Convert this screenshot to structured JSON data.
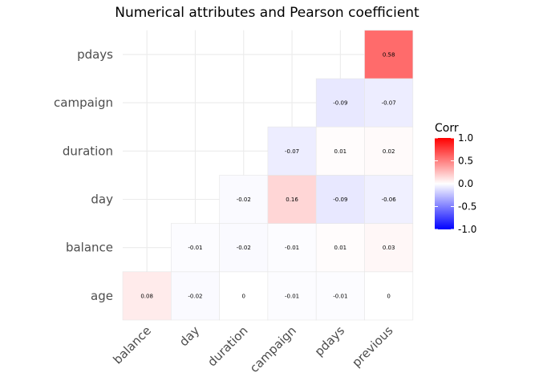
{
  "chart_data": {
    "type": "heatmap",
    "title": "Numerical attributes and Pearson coefficient",
    "x_categories": [
      "balance",
      "day",
      "duration",
      "campaign",
      "pdays",
      "previous"
    ],
    "y_categories": [
      "age",
      "balance",
      "day",
      "duration",
      "campaign",
      "pdays"
    ],
    "cells": [
      {
        "x": "balance",
        "y": "age",
        "value": 0.08,
        "label": "0.08"
      },
      {
        "x": "day",
        "y": "age",
        "value": -0.02,
        "label": "-0.02"
      },
      {
        "x": "duration",
        "y": "age",
        "value": 0.0,
        "label": "0"
      },
      {
        "x": "campaign",
        "y": "age",
        "value": -0.01,
        "label": "-0.01"
      },
      {
        "x": "pdays",
        "y": "age",
        "value": -0.01,
        "label": "-0.01"
      },
      {
        "x": "previous",
        "y": "age",
        "value": 0.0,
        "label": "0"
      },
      {
        "x": "day",
        "y": "balance",
        "value": -0.01,
        "label": "-0.01"
      },
      {
        "x": "duration",
        "y": "balance",
        "value": -0.02,
        "label": "-0.02"
      },
      {
        "x": "campaign",
        "y": "balance",
        "value": -0.01,
        "label": "-0.01"
      },
      {
        "x": "pdays",
        "y": "balance",
        "value": 0.01,
        "label": "0.01"
      },
      {
        "x": "previous",
        "y": "balance",
        "value": 0.03,
        "label": "0.03"
      },
      {
        "x": "duration",
        "y": "day",
        "value": -0.02,
        "label": "-0.02"
      },
      {
        "x": "campaign",
        "y": "day",
        "value": 0.16,
        "label": "0.16"
      },
      {
        "x": "pdays",
        "y": "day",
        "value": -0.09,
        "label": "-0.09"
      },
      {
        "x": "previous",
        "y": "day",
        "value": -0.06,
        "label": "-0.06"
      },
      {
        "x": "campaign",
        "y": "duration",
        "value": -0.07,
        "label": "-0.07"
      },
      {
        "x": "pdays",
        "y": "duration",
        "value": 0.01,
        "label": "0.01"
      },
      {
        "x": "previous",
        "y": "duration",
        "value": 0.02,
        "label": "0.02"
      },
      {
        "x": "pdays",
        "y": "campaign",
        "value": -0.09,
        "label": "-0.09"
      },
      {
        "x": "previous",
        "y": "campaign",
        "value": -0.07,
        "label": "-0.07"
      },
      {
        "x": "previous",
        "y": "pdays",
        "value": 0.58,
        "label": "0.58"
      }
    ],
    "legend": {
      "title": "Corr",
      "ticks": [
        1.0,
        0.5,
        0.0,
        -0.5,
        -1.0
      ],
      "tick_labels": [
        "1.0",
        "0.5",
        "0.0",
        "-0.5",
        "-1.0"
      ],
      "limits": [
        -1,
        1
      ],
      "low_color": "#0000ff",
      "mid_color": "#ffffff",
      "high_color": "#ff0000",
      "placement": "right"
    },
    "grid": true
  }
}
